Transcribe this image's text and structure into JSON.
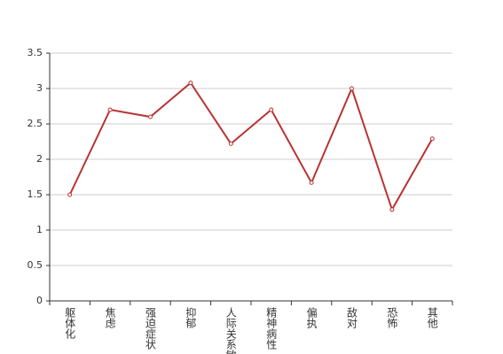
{
  "chart_data": {
    "type": "line",
    "categories": [
      "躯体化",
      "焦虑",
      "强迫症状",
      "抑郁",
      "人际关系敏感",
      "精神病性",
      "偏执",
      "敌对",
      "恐怖",
      "其他"
    ],
    "values": [
      1.5,
      2.7,
      2.6,
      3.08,
      2.22,
      2.7,
      1.67,
      3.0,
      1.29,
      2.29
    ],
    "color": "#b83333",
    "ylim": [
      0,
      3.5
    ],
    "yticks": [
      0,
      0.5,
      1,
      1.5,
      2,
      2.5,
      3,
      3.5
    ],
    "grid": true
  }
}
